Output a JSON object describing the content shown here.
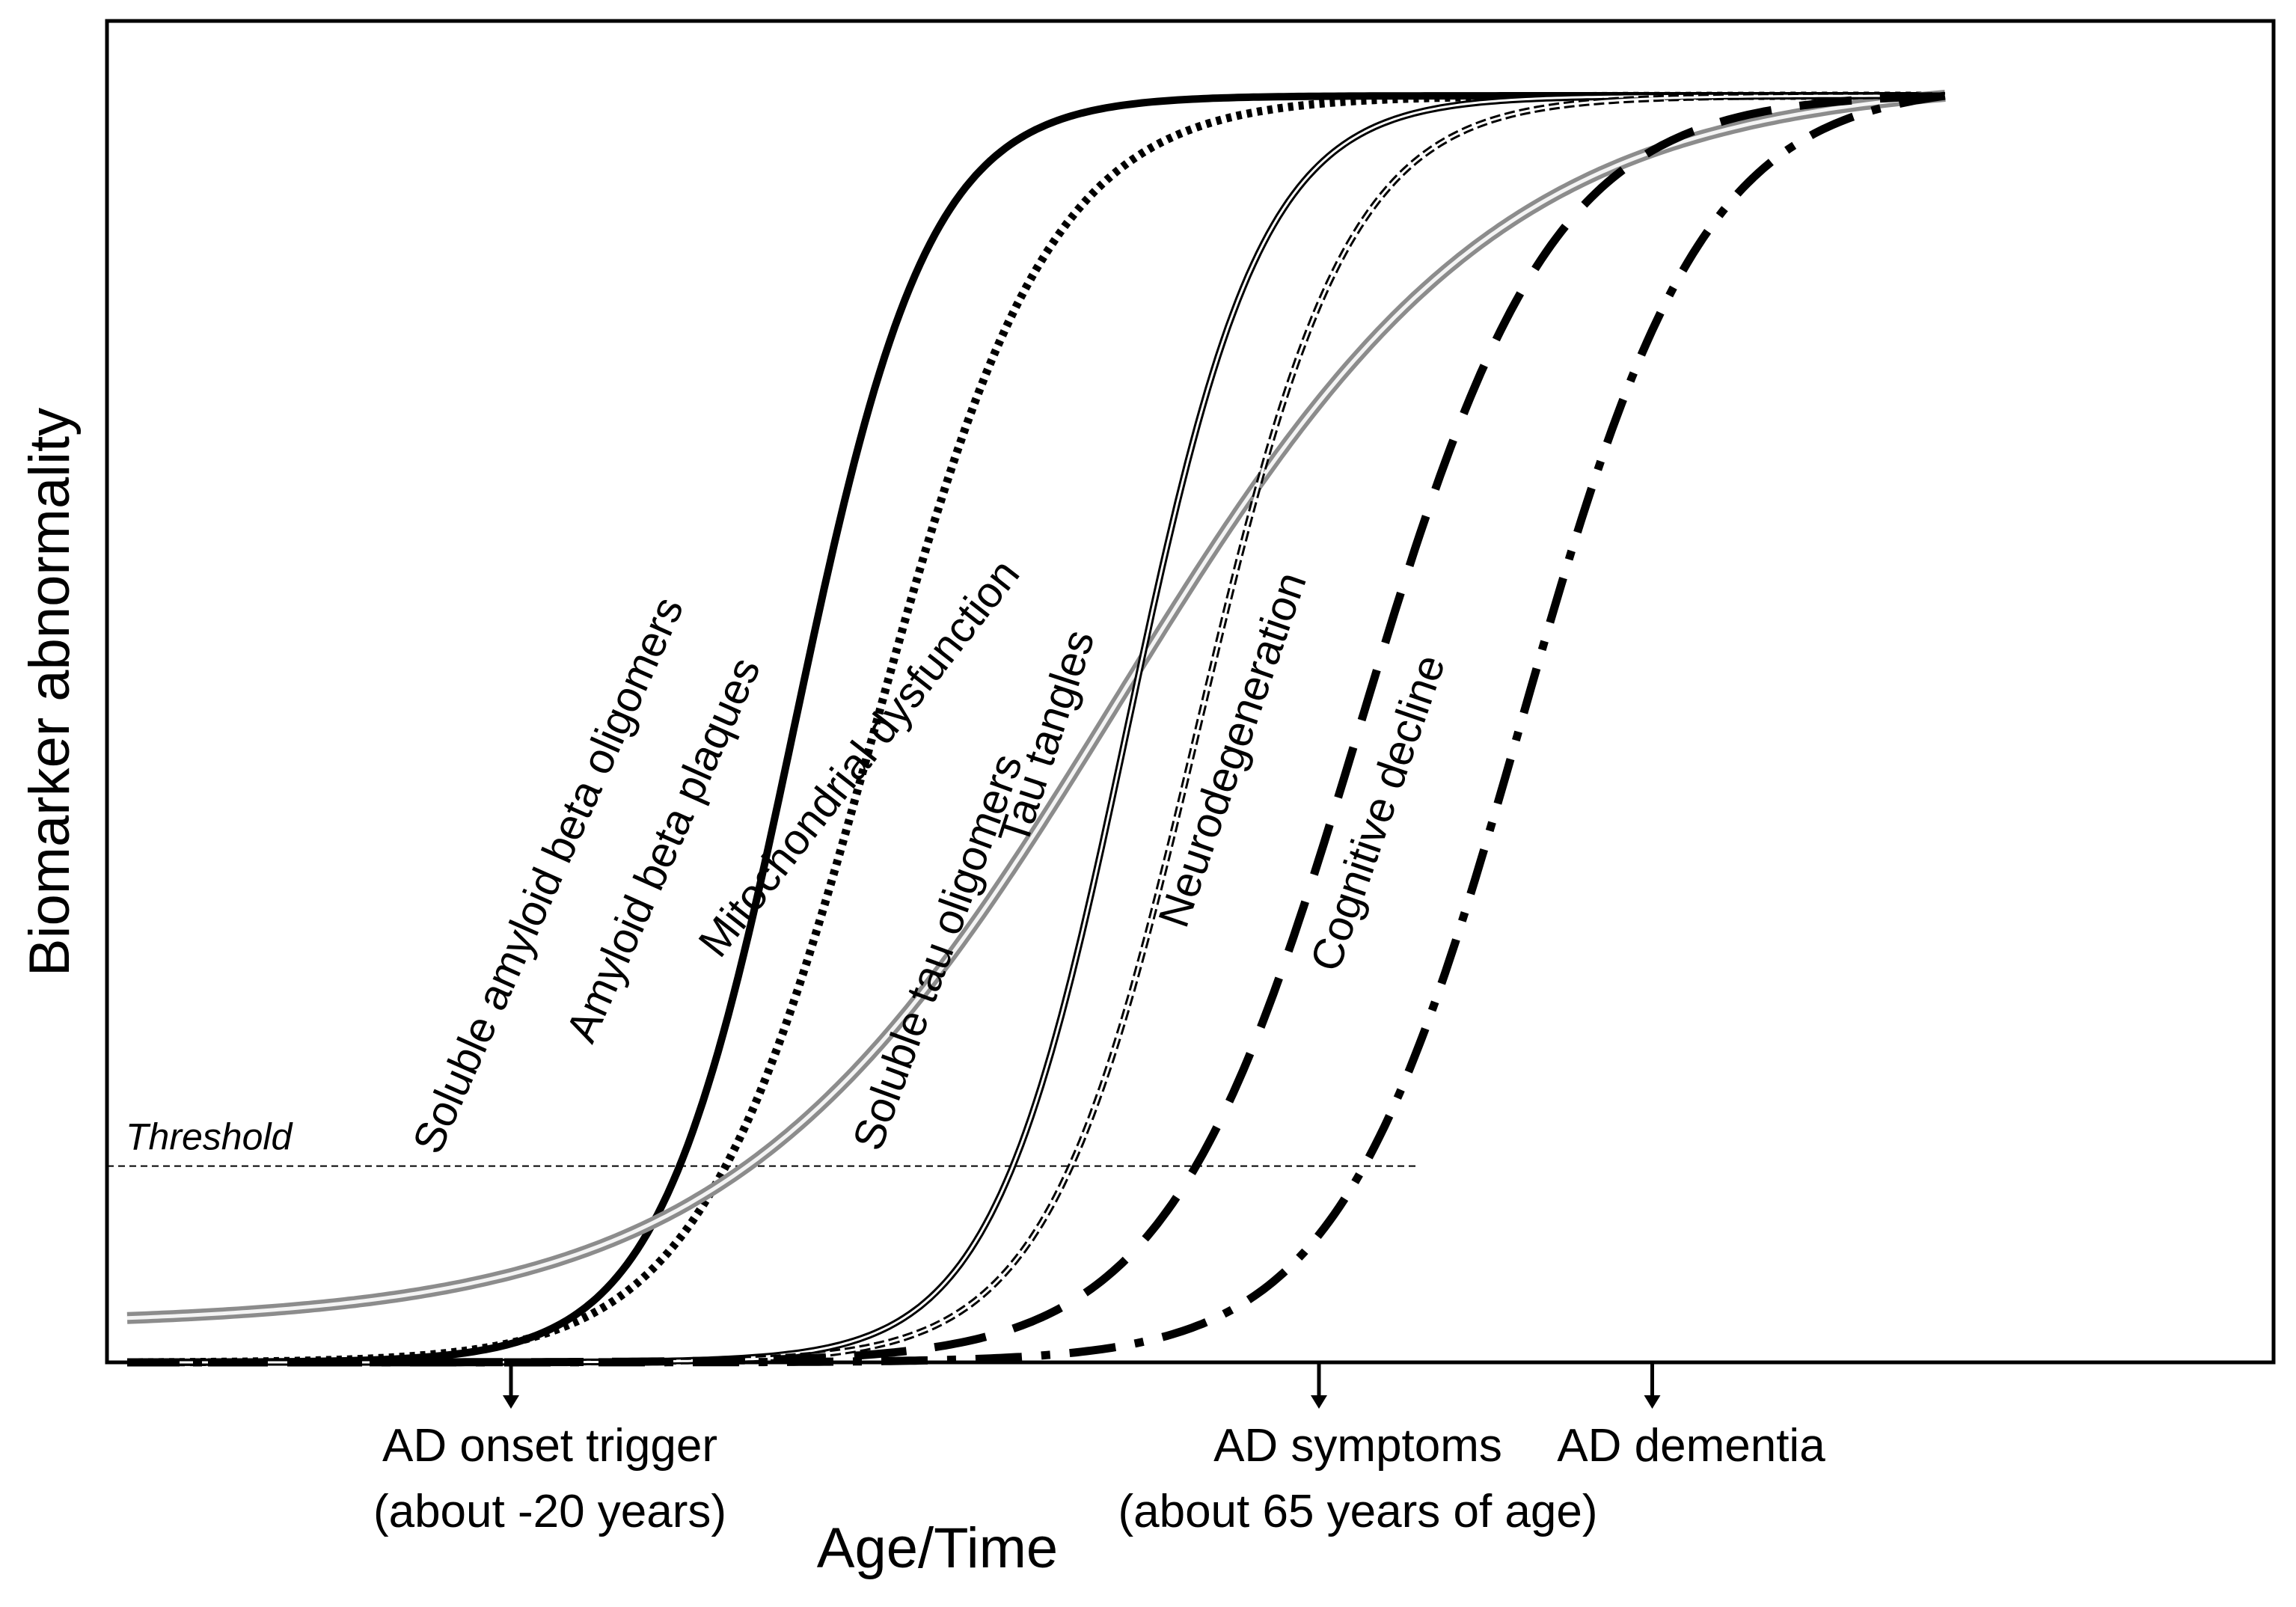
{
  "chart_data": {
    "type": "line",
    "title": "",
    "xlabel": "Age/Time",
    "ylabel": "Biomarker abnormality",
    "xlim": [
      0,
      100
    ],
    "ylim": [
      0,
      1
    ],
    "grid": false,
    "legend": "labels placed along curves",
    "threshold": {
      "label": "Threshold",
      "y": 0.155,
      "x_end": 64
    },
    "series": [
      {
        "name": "Soluble amyloid beta oligomers",
        "style": "solid-thick",
        "color": "#000000",
        "midpoint": 33,
        "steepness": 0.3,
        "start": 0.0
      },
      {
        "name": "Amyloid beta plaques",
        "style": "dotted-thick",
        "color": "#000000",
        "midpoint": 37,
        "steepness": 0.23,
        "start": 0.0
      },
      {
        "name": "Mitochondrial dysfunction",
        "style": "double-gray",
        "color": "#9a9a9a",
        "midpoint": 49,
        "steepness": 0.105,
        "start": 0.035
      },
      {
        "name": "Soluble tau oligomers",
        "style": "double-black",
        "color": "#000000",
        "midpoint": 49.5,
        "steepness": 0.3,
        "start": 0.0
      },
      {
        "name": "Tau tangles",
        "style": "double-dashed",
        "color": "#000000",
        "midpoint": 53,
        "steepness": 0.27,
        "start": 0.0
      },
      {
        "name": "Neurodegeneration",
        "style": "long-dash",
        "color": "#000000",
        "midpoint": 61,
        "steepness": 0.21,
        "start": 0.0
      },
      {
        "name": "Cognitive decline",
        "style": "dash-dot",
        "color": "#000000",
        "midpoint": 69,
        "steepness": 0.22,
        "start": 0.0
      }
    ],
    "markers": [
      {
        "x": 19,
        "label_line1": "AD onset trigger",
        "label_line2": "(about -20 years)"
      },
      {
        "x": 59,
        "label_line1": "AD symptoms",
        "label_line2": "(about 65 years of age)"
      },
      {
        "x": 75.5,
        "label_line1": "AD dementia",
        "label_line2": ""
      }
    ],
    "x_end": 90
  }
}
